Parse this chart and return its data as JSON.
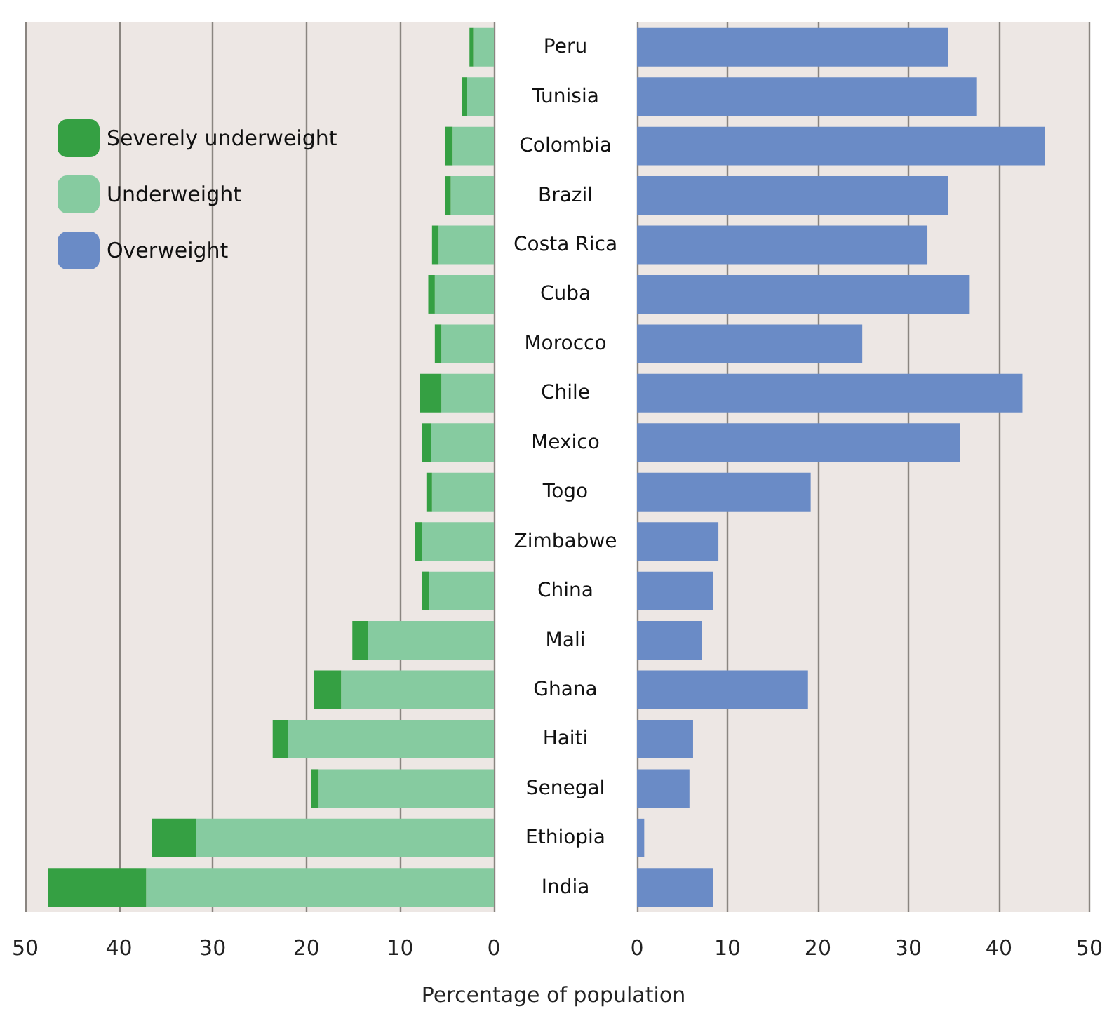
{
  "chart_data": [
    {
      "type": "bar",
      "orientation": "horizontal",
      "stacked": true,
      "categories": [
        null,
        null,
        null,
        null,
        null,
        null,
        null,
        null,
        null,
        null,
        null,
        null,
        null,
        null,
        null,
        null,
        null,
        null
      ],
      "series": [
        {
          "name": "Underweight",
          "color": "#86cba0",
          "values": [
            2.2,
            2.9,
            4.4,
            4.6,
            5.9,
            6.3,
            5.6,
            5.6,
            6.7,
            6.6,
            7.7,
            6.9,
            13.4,
            16.3,
            22.0,
            18.7,
            31.8,
            37.1
          ]
        },
        {
          "name": "Severely underweight",
          "color": "#35a043",
          "values": [
            0.4,
            0.5,
            0.8,
            0.6,
            0.7,
            0.7,
            0.7,
            2.3,
            1.0,
            0.6,
            0.7,
            0.8,
            1.7,
            2.9,
            1.6,
            0.8,
            4.7,
            10.5
          ]
        }
      ],
      "xlim": [
        50,
        0
      ],
      "xticks": [
        50,
        40,
        30,
        20,
        10,
        0
      ],
      "grid": "x",
      "legend": "top left",
      "tick_labels": "x"
    },
    {
      "type": "bar",
      "orientation": "horizontal",
      "categories": [
        "Peru",
        "Tunisia",
        "Colombia",
        "Brazil",
        "Costa Rica",
        "Cuba",
        "Morocco",
        "Chile",
        "Mexico",
        "Togo",
        "Zimbabwe",
        "China",
        "Mali",
        "Ghana",
        "Haiti",
        "Senegal",
        "Ethiopia",
        "India"
      ],
      "series": [
        {
          "name": "Overweight",
          "color": "#6a8bc6",
          "values": [
            34.4,
            37.5,
            45.1,
            34.4,
            32.1,
            36.7,
            24.9,
            42.6,
            35.7,
            19.2,
            9.0,
            8.4,
            7.2,
            18.9,
            6.2,
            5.8,
            0.8,
            8.4
          ]
        }
      ],
      "xlim": [
        0,
        50
      ],
      "xticks": [
        0,
        10,
        20,
        30,
        40,
        50
      ],
      "grid": "x",
      "xlabel": "Percentage of population"
    }
  ]
}
